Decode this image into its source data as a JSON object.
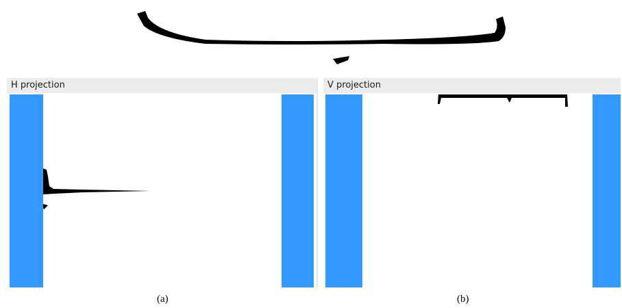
{
  "colors": {
    "bar": "#3399ff",
    "header_bg": "#ececec",
    "ink": "#000000"
  },
  "panels": [
    {
      "title": "H projection",
      "caption": "(a)"
    },
    {
      "title": "V projection",
      "caption": "(b)"
    }
  ]
}
